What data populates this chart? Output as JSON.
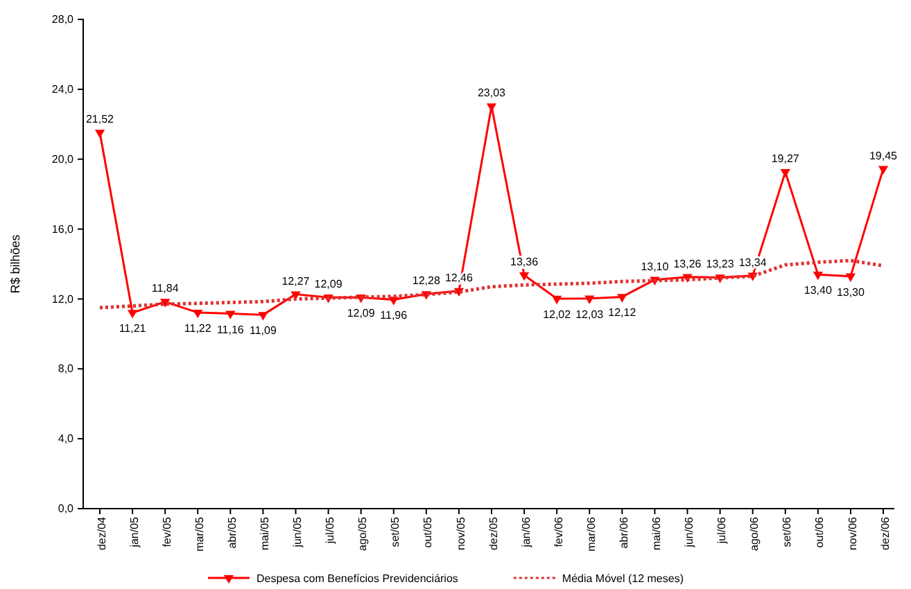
{
  "chart_data": {
    "type": "line",
    "ylabel": "R$ bilhões",
    "categories": [
      "dez/04",
      "jan/05",
      "fev/05",
      "mar/05",
      "abr/05",
      "mai/05",
      "jun/05",
      "jul/05",
      "ago/05",
      "set/05",
      "out/05",
      "nov/05",
      "dez/05",
      "jan/06",
      "fev/06",
      "mar/06",
      "abr/06",
      "mai/06",
      "jun/06",
      "jul/06",
      "ago/06",
      "set/06",
      "out/06",
      "nov/06",
      "dez/06"
    ],
    "series": [
      {
        "name": "Despesa com Benefícios Previdenciários",
        "color": "#ff0000",
        "marker": "triangle",
        "line_style": "solid",
        "values": [
          21.52,
          11.21,
          11.84,
          11.22,
          11.16,
          11.09,
          12.27,
          12.09,
          12.09,
          11.96,
          12.28,
          12.46,
          23.03,
          13.36,
          12.02,
          12.03,
          12.12,
          13.1,
          13.26,
          13.23,
          13.34,
          19.27,
          13.4,
          13.3,
          19.45
        ],
        "value_labels": [
          "21,52",
          "11,21",
          "11,84",
          "11,22",
          "11,16",
          "11,09",
          "12,27",
          "12,09",
          "12,09",
          "11,96",
          "12,28",
          "12,46",
          "23,03",
          "13,36",
          "12,02",
          "12,03",
          "12,12",
          "13,10",
          "13,26",
          "13,23",
          "13,34",
          "19,27",
          "13,40",
          "13,30",
          "19,45"
        ]
      },
      {
        "name": "Média Móvel (12 meses)",
        "color": "#e03030",
        "marker": "none",
        "line_style": "dotted",
        "values": [
          11.5,
          11.6,
          11.7,
          11.75,
          11.8,
          11.85,
          12.0,
          12.05,
          12.1,
          12.15,
          12.25,
          12.4,
          12.7,
          12.8,
          12.85,
          12.9,
          13.0,
          13.05,
          13.1,
          13.2,
          13.3,
          13.95,
          14.1,
          14.2,
          13.9
        ]
      }
    ],
    "ylim": [
      0,
      28
    ],
    "yticks": [
      {
        "value": 0,
        "label": "0,0"
      },
      {
        "value": 4,
        "label": "4,0"
      },
      {
        "value": 8,
        "label": "8,0"
      },
      {
        "value": 12,
        "label": "12,0"
      },
      {
        "value": 16,
        "label": "16,0"
      },
      {
        "value": 20,
        "label": "20,0"
      },
      {
        "value": 24,
        "label": "24,0"
      },
      {
        "value": 28,
        "label": "28,0"
      }
    ],
    "grid": false,
    "legend": "bottom"
  }
}
